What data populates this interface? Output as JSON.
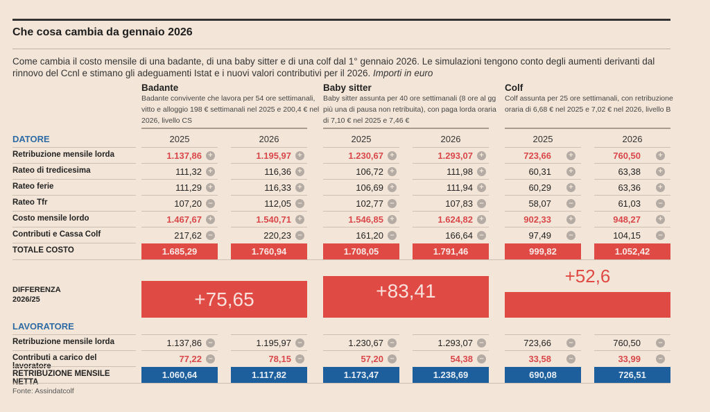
{
  "title": "Che cosa cambia da gennaio 2026",
  "intro": "Come cambia il costo mensile di una badante, di una baby sitter e di una colf dal 1° gennaio 2026. Le simulazioni tengono conto degli aumenti derivanti dal rinnovo del Ccnl e stimano gli adeguamenti Istat e i nuovi valori contributivi per il 2026.",
  "intro_italic": "Importi in euro",
  "categories": [
    {
      "name": "Badante",
      "desc": "Badante convivente che lavora per 54 ore settimanali, vitto e alloggio 198 € settimanali nel 2025 e 200,4 € nel 2026, livello CS",
      "difference": "+75,65"
    },
    {
      "name": "Baby sitter",
      "desc": "Baby sitter assunta per 40 ore settimanali (8 ore al gg più una di pausa non retribuita), con paga lorda oraria di 7,10 € nel 2025 e 7,46 €",
      "difference": "+83,41"
    },
    {
      "name": "Colf",
      "desc": "Colf assunta per 25 ore settimanali, con retribuzione oraria di 6,68 € nel 2025 e 7,02 € nel 2026, livello B",
      "difference": "+52,6"
    }
  ],
  "years": [
    "2025",
    "2026",
    "2025",
    "2026",
    "2025",
    "2026"
  ],
  "datore": {
    "heading": "DATORE",
    "rows": [
      {
        "label": "Retribuzione mensile lorda",
        "highlight": true,
        "sign": "plus",
        "values": [
          "1.137,86",
          "1.195,97",
          "1.230,67",
          "1.293,07",
          "723,66",
          "760,50"
        ]
      },
      {
        "label": "Rateo di tredicesima",
        "highlight": false,
        "sign": "plus",
        "values": [
          "111,32",
          "116,36",
          "106,72",
          "111,98",
          "60,31",
          "63,38"
        ]
      },
      {
        "label": "Rateo ferie",
        "highlight": false,
        "sign": "plus",
        "values": [
          "111,29",
          "116,33",
          "106,69",
          "111,94",
          "60,29",
          "63,36"
        ]
      },
      {
        "label": "Rateo Tfr",
        "highlight": false,
        "sign": "minus",
        "values": [
          "107,20",
          "112,05",
          "102,77",
          "107,83",
          "58,07",
          "61,03"
        ]
      },
      {
        "label": "Costo mensile lordo",
        "highlight": true,
        "sign": "plus",
        "values": [
          "1.467,67",
          "1.540,71",
          "1.546,85",
          "1.624,82",
          "902,33",
          "948,27"
        ]
      },
      {
        "label": "Contributi e Cassa Colf",
        "highlight": false,
        "sign": "minus",
        "values": [
          "217,62",
          "220,23",
          "161,20",
          "166,64",
          "97,49",
          "104,15"
        ]
      }
    ],
    "total": {
      "label": "TOTALE COSTO",
      "values": [
        "1.685,29",
        "1.760,94",
        "1.708,05",
        "1.791,46",
        "999,82",
        "1.052,42"
      ]
    }
  },
  "difference_label": [
    "DIFFERENZA",
    "2026/25"
  ],
  "lavoratore": {
    "heading": "LAVORATORE",
    "rows": [
      {
        "label": "Retribuzione mensile lorda",
        "highlight": false,
        "sign": "minus",
        "values": [
          "1.137,86",
          "1.195,97",
          "1.230,67",
          "1.293,07",
          "723,66",
          "760,50"
        ]
      },
      {
        "label": "Contributi a carico del lavoratore",
        "highlight": true,
        "sign": "minus",
        "values": [
          "77,22",
          "78,15",
          "57,20",
          "54,38",
          "33,58",
          "33,99"
        ]
      }
    ],
    "total": {
      "label": "RETRIBUZIONE MENSILE NETTA",
      "values": [
        "1.060,64",
        "1.117,82",
        "1.173,47",
        "1.238,69",
        "690,08",
        "726,51"
      ]
    }
  },
  "source": "Fonte: Assindatcolf",
  "colors": {
    "red": "#e04a45",
    "blue": "#1d5f9c",
    "heading_blue": "#2e6aa3",
    "background": "#f3e6d8"
  }
}
